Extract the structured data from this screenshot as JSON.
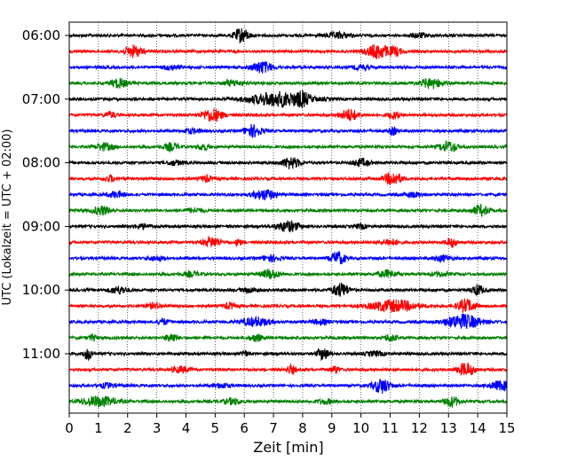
{
  "chart_data": {
    "type": "line",
    "title": "",
    "xlabel": "Zeit  [min]",
    "ylabel": "UTC (Lokalzeit = UTC + 02:00)",
    "xlim": [
      0,
      15
    ],
    "x_ticks": [
      "0",
      "1",
      "2",
      "3",
      "4",
      "5",
      "6",
      "7",
      "8",
      "9",
      "10",
      "11",
      "12",
      "13",
      "14",
      "15"
    ],
    "y_tick_labels": [
      "06:00",
      "07:00",
      "08:00",
      "09:00",
      "10:00",
      "11:00"
    ],
    "y_tick_rows": [
      0,
      4,
      8,
      12,
      16,
      20
    ],
    "vertical_grid": "dotted, every minute",
    "row_colors": [
      "#000000",
      "#ff0000",
      "#0000ff",
      "#008000"
    ],
    "row_interval_minutes": 15,
    "row_count": 24,
    "series": [
      {
        "start": "06:00",
        "bursts": [
          [
            5.9,
            0.25,
            1.0
          ],
          [
            9.2,
            0.4,
            0.4
          ],
          [
            12.0,
            0.3,
            0.3
          ]
        ]
      },
      {
        "start": "06:15",
        "bursts": [
          [
            2.2,
            0.3,
            0.8
          ],
          [
            10.6,
            0.4,
            1.0
          ],
          [
            11.2,
            0.2,
            0.5
          ]
        ]
      },
      {
        "start": "06:30",
        "bursts": [
          [
            6.6,
            0.35,
            0.8
          ],
          [
            3.5,
            0.3,
            0.3
          ],
          [
            10.0,
            0.3,
            0.3
          ]
        ]
      },
      {
        "start": "06:45",
        "bursts": [
          [
            1.7,
            0.3,
            0.6
          ],
          [
            5.6,
            0.3,
            0.4
          ],
          [
            12.4,
            0.35,
            0.7
          ]
        ]
      },
      {
        "start": "07:00",
        "bursts": [
          [
            7.2,
            1.0,
            1.0
          ],
          [
            8.0,
            0.2,
            0.6
          ]
        ]
      },
      {
        "start": "07:15",
        "bursts": [
          [
            4.9,
            0.35,
            0.9
          ],
          [
            9.6,
            0.3,
            0.8
          ],
          [
            1.4,
            0.2,
            0.4
          ],
          [
            11.1,
            0.2,
            0.5
          ]
        ]
      },
      {
        "start": "07:30",
        "bursts": [
          [
            6.3,
            0.3,
            0.8
          ],
          [
            4.2,
            0.3,
            0.3
          ],
          [
            11.1,
            0.15,
            0.5
          ]
        ]
      },
      {
        "start": "07:45",
        "bursts": [
          [
            1.2,
            0.3,
            0.5
          ],
          [
            3.5,
            0.25,
            0.5
          ],
          [
            13.0,
            0.3,
            0.7
          ],
          [
            4.6,
            0.2,
            0.4
          ]
        ]
      },
      {
        "start": "08:00",
        "bursts": [
          [
            7.6,
            0.3,
            0.8
          ],
          [
            10.0,
            0.3,
            0.5
          ],
          [
            3.6,
            0.3,
            0.3
          ]
        ]
      },
      {
        "start": "08:15",
        "bursts": [
          [
            11.1,
            0.3,
            0.9
          ],
          [
            1.4,
            0.2,
            0.4
          ],
          [
            4.7,
            0.2,
            0.4
          ]
        ]
      },
      {
        "start": "08:30",
        "bursts": [
          [
            6.7,
            0.4,
            0.7
          ],
          [
            1.6,
            0.3,
            0.4
          ],
          [
            11.8,
            0.3,
            0.3
          ]
        ]
      },
      {
        "start": "08:45",
        "bursts": [
          [
            1.1,
            0.3,
            0.6
          ],
          [
            14.1,
            0.3,
            0.7
          ],
          [
            4.3,
            0.3,
            0.3
          ]
        ]
      },
      {
        "start": "09:00",
        "bursts": [
          [
            7.5,
            0.4,
            0.7
          ],
          [
            10.0,
            0.2,
            0.3
          ],
          [
            2.5,
            0.3,
            0.3
          ]
        ]
      },
      {
        "start": "09:15",
        "bursts": [
          [
            4.9,
            0.3,
            0.7
          ],
          [
            13.1,
            0.2,
            0.6
          ],
          [
            5.8,
            0.1,
            0.5
          ],
          [
            11.0,
            0.3,
            0.4
          ]
        ]
      },
      {
        "start": "09:30",
        "bursts": [
          [
            9.2,
            0.25,
            0.9
          ],
          [
            6.9,
            0.3,
            0.4
          ],
          [
            3.0,
            0.3,
            0.3
          ],
          [
            12.8,
            0.3,
            0.4
          ]
        ]
      },
      {
        "start": "09:45",
        "bursts": [
          [
            6.9,
            0.3,
            0.6
          ],
          [
            10.9,
            0.3,
            0.5
          ],
          [
            4.2,
            0.3,
            0.3
          ],
          [
            12.7,
            0.3,
            0.3
          ]
        ]
      },
      {
        "start": "10:00",
        "bursts": [
          [
            9.3,
            0.3,
            0.9
          ],
          [
            1.7,
            0.3,
            0.5
          ],
          [
            14.0,
            0.2,
            0.7
          ],
          [
            6.2,
            0.3,
            0.3
          ]
        ]
      },
      {
        "start": "10:15",
        "bursts": [
          [
            11.1,
            0.8,
            0.8
          ],
          [
            13.6,
            0.3,
            0.9
          ],
          [
            2.9,
            0.3,
            0.3
          ],
          [
            5.5,
            0.2,
            0.4
          ]
        ]
      },
      {
        "start": "10:30",
        "bursts": [
          [
            13.5,
            0.6,
            1.0
          ],
          [
            6.4,
            0.5,
            0.6
          ],
          [
            8.6,
            0.3,
            0.3
          ],
          [
            3.2,
            0.2,
            0.4
          ]
        ]
      },
      {
        "start": "10:45",
        "bursts": [
          [
            3.5,
            0.2,
            0.6
          ],
          [
            6.4,
            0.2,
            0.5
          ],
          [
            11.0,
            0.2,
            0.5
          ],
          [
            0.8,
            0.15,
            0.4
          ]
        ]
      },
      {
        "start": "11:00",
        "bursts": [
          [
            0.65,
            0.15,
            0.8
          ],
          [
            8.7,
            0.2,
            0.8
          ],
          [
            6.0,
            0.1,
            0.5
          ],
          [
            10.5,
            0.3,
            0.3
          ]
        ]
      },
      {
        "start": "11:15",
        "bursts": [
          [
            13.6,
            0.3,
            0.9
          ],
          [
            7.6,
            0.15,
            0.6
          ],
          [
            9.1,
            0.15,
            0.5
          ],
          [
            3.8,
            0.3,
            0.4
          ]
        ]
      },
      {
        "start": "11:30",
        "bursts": [
          [
            10.7,
            0.3,
            1.0
          ],
          [
            14.8,
            0.4,
            0.6
          ],
          [
            5.2,
            0.3,
            0.3
          ],
          [
            1.3,
            0.3,
            0.3
          ]
        ]
      },
      {
        "start": "11:45",
        "bursts": [
          [
            1.0,
            0.6,
            0.7
          ],
          [
            13.1,
            0.25,
            0.7
          ],
          [
            5.6,
            0.3,
            0.4
          ],
          [
            8.8,
            0.3,
            0.3
          ]
        ]
      }
    ]
  }
}
